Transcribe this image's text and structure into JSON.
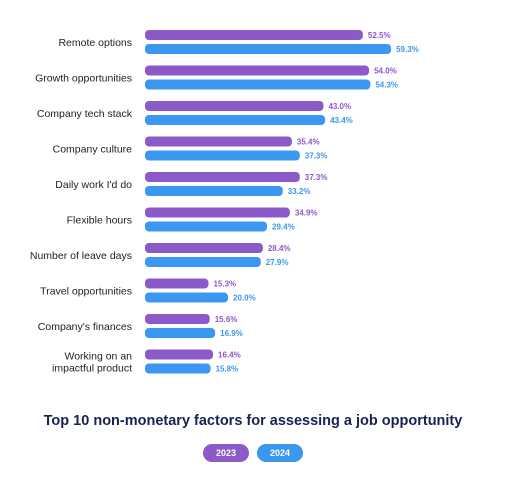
{
  "chart_data": {
    "type": "bar",
    "orientation": "horizontal",
    "title": "Top 10 non-monetary factors for assessing a job opportunity",
    "categories": [
      "Remote options",
      "Growth opportunities",
      "Company tech stack",
      "Company culture",
      "Daily work I'd do",
      "Flexible hours",
      "Number of leave days",
      "Travel opportunities",
      "Company's finances",
      "Working on an impactful product"
    ],
    "series": [
      {
        "name": "2023",
        "color": "#8b5ac8",
        "values": [
          52.5,
          54.0,
          43.0,
          35.4,
          37.3,
          34.9,
          28.4,
          15.3,
          15.6,
          16.4
        ],
        "labels": [
          "52.5%",
          "54.0%",
          "43.0%",
          "35.4%",
          "37.3%",
          "34.9%",
          "28.4%",
          "15.3%",
          "15.6%",
          "16.4%"
        ]
      },
      {
        "name": "2024",
        "color": "#3b97ef",
        "values": [
          59.3,
          54.3,
          43.4,
          37.3,
          33.2,
          29.4,
          27.9,
          20.0,
          16.9,
          15.8
        ],
        "labels": [
          "59.3%",
          "54.3%",
          "43.4%",
          "37.3%",
          "33.2%",
          "29.4%",
          "27.9%",
          "20.0%",
          "16.9%",
          "15.8%"
        ]
      }
    ],
    "xlim": [
      0,
      100
    ],
    "grid": false,
    "legend_position": "bottom-center"
  }
}
